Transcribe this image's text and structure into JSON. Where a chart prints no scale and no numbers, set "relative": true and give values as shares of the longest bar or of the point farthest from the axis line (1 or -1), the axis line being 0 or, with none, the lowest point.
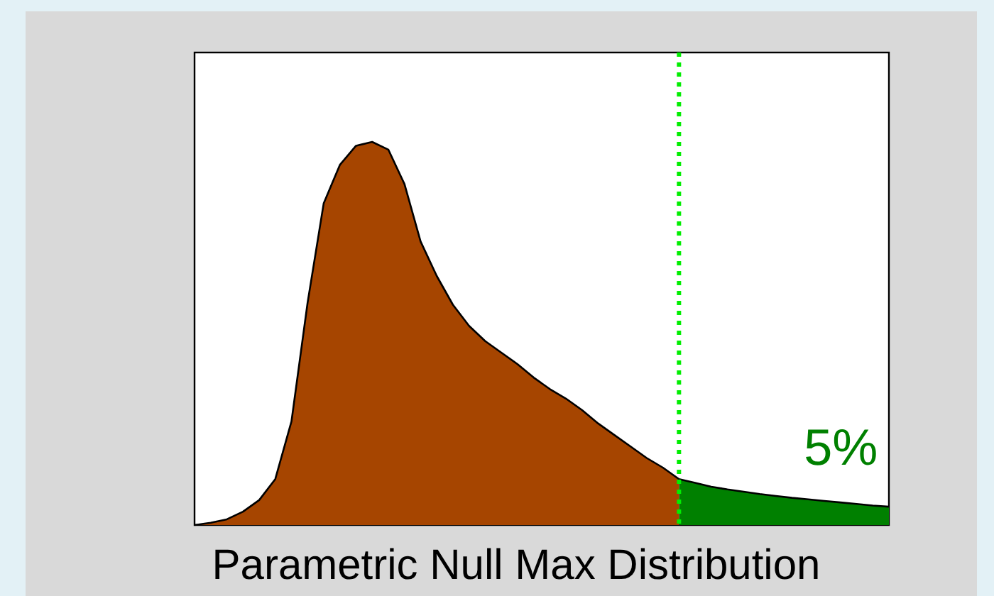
{
  "chart_data": {
    "type": "area",
    "relative": true,
    "xlabel": "Parametric Null Max Distribution",
    "categories": [
      null,
      null,
      null,
      null,
      null,
      null,
      null,
      null,
      null,
      null,
      null,
      null,
      null,
      null,
      null,
      null,
      null,
      null,
      null,
      null,
      null,
      null,
      null,
      null,
      null,
      null,
      null,
      null,
      null,
      null,
      null,
      null,
      null,
      null,
      null,
      null,
      null,
      null,
      null,
      null,
      null,
      null,
      null,
      null
    ],
    "series": [
      {
        "color": "#a64500",
        "values": [
          0,
          0.006,
          0.015,
          0.035,
          0.065,
          0.12,
          0.27,
          0.58,
          0.84,
          0.94,
          0.99,
          1,
          0.98,
          0.89,
          0.74,
          0.65,
          0.575,
          0.52,
          0.48,
          0.45,
          0.42,
          0.385,
          0.355,
          0.33,
          0.3,
          0.265,
          0.235,
          0.205,
          0.175,
          0.15,
          0.12,
          null,
          null,
          null,
          null,
          null,
          null,
          null,
          null,
          null,
          null,
          null,
          null,
          null
        ]
      },
      {
        "color": "#008000",
        "values": [
          null,
          null,
          null,
          null,
          null,
          null,
          null,
          null,
          null,
          null,
          null,
          null,
          null,
          null,
          null,
          null,
          null,
          null,
          null,
          null,
          null,
          null,
          null,
          null,
          null,
          null,
          null,
          null,
          null,
          null,
          0.12,
          0.11,
          0.1,
          0.093,
          0.087,
          0.081,
          0.076,
          0.071,
          0.067,
          0.063,
          0.059,
          0.055,
          0.051,
          0.048
        ]
      }
    ],
    "ref_lines": [
      {
        "axis": "x",
        "color": "#00ee00",
        "line_style": "dotted"
      }
    ],
    "annotations": [
      "5%"
    ]
  }
}
